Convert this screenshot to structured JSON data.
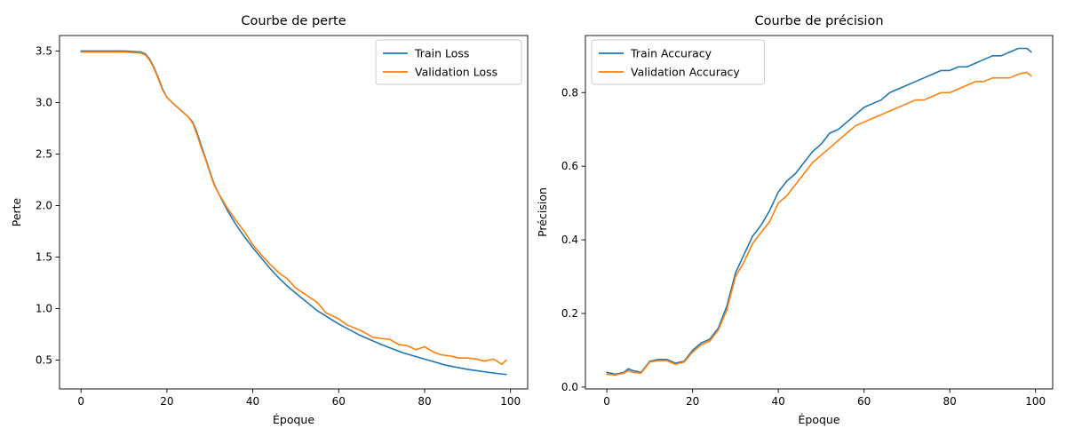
{
  "chart_data": [
    {
      "type": "line",
      "title": "Courbe de perte",
      "xlabel": "Époque",
      "ylabel": "Perte",
      "xlim": [
        -5,
        104
      ],
      "ylim": [
        0.22,
        3.65
      ],
      "xticks": [
        0,
        20,
        40,
        60,
        80,
        100
      ],
      "yticks": [
        0.5,
        1.0,
        1.5,
        2.0,
        2.5,
        3.0,
        3.5
      ],
      "ytick_decimals": 1,
      "legend_position": "top-right",
      "grid": false,
      "series": [
        {
          "name": "Train Loss",
          "color": "#1f77b4",
          "x": [
            0,
            5,
            10,
            14,
            15,
            16,
            17,
            18,
            19,
            20,
            22,
            25,
            26,
            27,
            28,
            29,
            30,
            31,
            32,
            34,
            36,
            38,
            40,
            42,
            44,
            46,
            48,
            50,
            55,
            60,
            65,
            70,
            75,
            80,
            85,
            90,
            95,
            99
          ],
          "y": [
            3.5,
            3.5,
            3.5,
            3.49,
            3.47,
            3.42,
            3.34,
            3.24,
            3.13,
            3.05,
            2.97,
            2.86,
            2.81,
            2.71,
            2.58,
            2.46,
            2.33,
            2.21,
            2.12,
            1.96,
            1.82,
            1.7,
            1.59,
            1.49,
            1.39,
            1.3,
            1.22,
            1.15,
            0.98,
            0.85,
            0.74,
            0.65,
            0.57,
            0.51,
            0.45,
            0.41,
            0.38,
            0.36
          ]
        },
        {
          "name": "Validation Loss",
          "color": "#ff7f0e",
          "x": [
            0,
            5,
            10,
            14,
            15,
            16,
            17,
            18,
            19,
            20,
            22,
            25,
            26,
            27,
            28,
            29,
            30,
            31,
            32,
            34,
            36,
            38,
            40,
            42,
            44,
            46,
            48,
            50,
            55,
            57,
            60,
            62,
            65,
            68,
            70,
            72,
            74,
            76,
            78,
            80,
            82,
            84,
            86,
            88,
            90,
            92,
            94,
            96,
            98,
            99
          ],
          "y": [
            3.49,
            3.49,
            3.49,
            3.48,
            3.46,
            3.41,
            3.33,
            3.23,
            3.12,
            3.05,
            2.97,
            2.86,
            2.8,
            2.69,
            2.56,
            2.45,
            2.32,
            2.2,
            2.12,
            1.98,
            1.86,
            1.75,
            1.62,
            1.52,
            1.43,
            1.35,
            1.29,
            1.2,
            1.06,
            0.96,
            0.9,
            0.84,
            0.79,
            0.72,
            0.71,
            0.7,
            0.65,
            0.64,
            0.6,
            0.63,
            0.58,
            0.55,
            0.54,
            0.52,
            0.52,
            0.51,
            0.49,
            0.51,
            0.46,
            0.5
          ]
        }
      ]
    },
    {
      "type": "line",
      "title": "Courbe de précision",
      "xlabel": "Époque",
      "ylabel": "Précision",
      "xlim": [
        -5,
        104
      ],
      "ylim": [
        -0.005,
        0.955
      ],
      "xticks": [
        0,
        20,
        40,
        60,
        80,
        100
      ],
      "yticks": [
        0.0,
        0.2,
        0.4,
        0.6,
        0.8
      ],
      "ytick_decimals": 1,
      "legend_position": "top-left",
      "grid": false,
      "series": [
        {
          "name": "Train Accuracy",
          "color": "#1f77b4",
          "x": [
            0,
            2,
            4,
            5,
            6,
            8,
            10,
            12,
            14,
            16,
            18,
            20,
            22,
            24,
            26,
            28,
            30,
            32,
            34,
            36,
            38,
            40,
            42,
            44,
            46,
            48,
            50,
            52,
            54,
            56,
            58,
            60,
            62,
            64,
            66,
            68,
            70,
            72,
            74,
            76,
            78,
            80,
            82,
            84,
            86,
            88,
            90,
            92,
            94,
            96,
            98,
            99
          ],
          "y": [
            0.04,
            0.035,
            0.04,
            0.05,
            0.045,
            0.04,
            0.07,
            0.075,
            0.075,
            0.065,
            0.07,
            0.1,
            0.12,
            0.13,
            0.16,
            0.22,
            0.31,
            0.36,
            0.41,
            0.44,
            0.48,
            0.53,
            0.56,
            0.58,
            0.61,
            0.64,
            0.66,
            0.69,
            0.7,
            0.72,
            0.74,
            0.76,
            0.77,
            0.78,
            0.8,
            0.81,
            0.82,
            0.83,
            0.84,
            0.85,
            0.86,
            0.86,
            0.87,
            0.87,
            0.88,
            0.89,
            0.9,
            0.9,
            0.91,
            0.92,
            0.92,
            0.91
          ]
        },
        {
          "name": "Validation Accuracy",
          "color": "#ff7f0e",
          "x": [
            0,
            2,
            4,
            5,
            6,
            8,
            10,
            12,
            14,
            16,
            18,
            20,
            22,
            24,
            26,
            28,
            30,
            32,
            34,
            36,
            38,
            40,
            42,
            44,
            46,
            48,
            50,
            52,
            54,
            56,
            58,
            60,
            62,
            64,
            66,
            68,
            70,
            72,
            74,
            76,
            78,
            80,
            82,
            84,
            86,
            88,
            90,
            92,
            94,
            96,
            98,
            99
          ],
          "y": [
            0.035,
            0.033,
            0.038,
            0.045,
            0.04,
            0.038,
            0.068,
            0.072,
            0.072,
            0.062,
            0.068,
            0.095,
            0.115,
            0.125,
            0.155,
            0.21,
            0.3,
            0.34,
            0.39,
            0.42,
            0.45,
            0.5,
            0.52,
            0.55,
            0.58,
            0.61,
            0.63,
            0.65,
            0.67,
            0.69,
            0.71,
            0.72,
            0.73,
            0.74,
            0.75,
            0.76,
            0.77,
            0.78,
            0.78,
            0.79,
            0.8,
            0.8,
            0.81,
            0.82,
            0.83,
            0.83,
            0.84,
            0.84,
            0.84,
            0.85,
            0.855,
            0.845
          ]
        }
      ]
    }
  ]
}
